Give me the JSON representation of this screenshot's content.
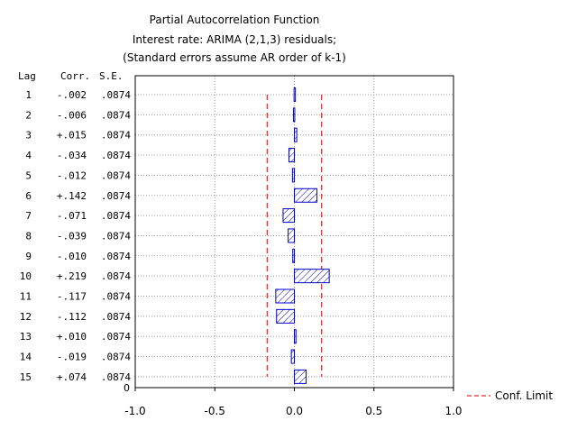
{
  "chart_data": {
    "type": "bar",
    "title": "Partial Autocorrelation Function",
    "subtitle": "Interest rate: ARIMA (2,1,3) residuals;",
    "note": "(Standard errors assume AR order of k-1)",
    "table_headers": {
      "lag": "Lag",
      "corr": "Corr.",
      "se": "S.E."
    },
    "rows": [
      {
        "lag": "1",
        "corr": "-.002",
        "se": ".0874"
      },
      {
        "lag": "2",
        "corr": "-.006",
        "se": ".0874"
      },
      {
        "lag": "3",
        "corr": "+.015",
        "se": ".0874"
      },
      {
        "lag": "4",
        "corr": "-.034",
        "se": ".0874"
      },
      {
        "lag": "5",
        "corr": "-.012",
        "se": ".0874"
      },
      {
        "lag": "6",
        "corr": "+.142",
        "se": ".0874"
      },
      {
        "lag": "7",
        "corr": "-.071",
        "se": ".0874"
      },
      {
        "lag": "8",
        "corr": "-.039",
        "se": ".0874"
      },
      {
        "lag": "9",
        "corr": "-.010",
        "se": ".0874"
      },
      {
        "lag": "10",
        "corr": "+.219",
        "se": ".0874"
      },
      {
        "lag": "11",
        "corr": "-.117",
        "se": ".0874"
      },
      {
        "lag": "12",
        "corr": "-.112",
        "se": ".0874"
      },
      {
        "lag": "13",
        "corr": "+.010",
        "se": ".0874"
      },
      {
        "lag": "14",
        "corr": "-.019",
        "se": ".0874"
      },
      {
        "lag": "15",
        "corr": "+.074",
        "se": ".0874"
      }
    ],
    "values": [
      -0.002,
      -0.006,
      0.015,
      -0.034,
      -0.012,
      0.142,
      -0.071,
      -0.039,
      -0.01,
      0.219,
      -0.117,
      -0.112,
      0.01,
      -0.019,
      0.074
    ],
    "conf_limit": 0.1713,
    "xlim": [
      -1.0,
      1.0
    ],
    "x_ticks": [
      "-1.0",
      "-0.5",
      "0.0",
      "0.5",
      "1.0"
    ],
    "y_zero_label": "0",
    "legend": {
      "label": "Conf. Limit",
      "position": "bottom-right"
    },
    "grid": true,
    "colors": {
      "bar_stroke": "#0000cc",
      "bar_hatch": "#0000cc",
      "conf_limit": "#cc0000",
      "grid": "#999999"
    }
  }
}
